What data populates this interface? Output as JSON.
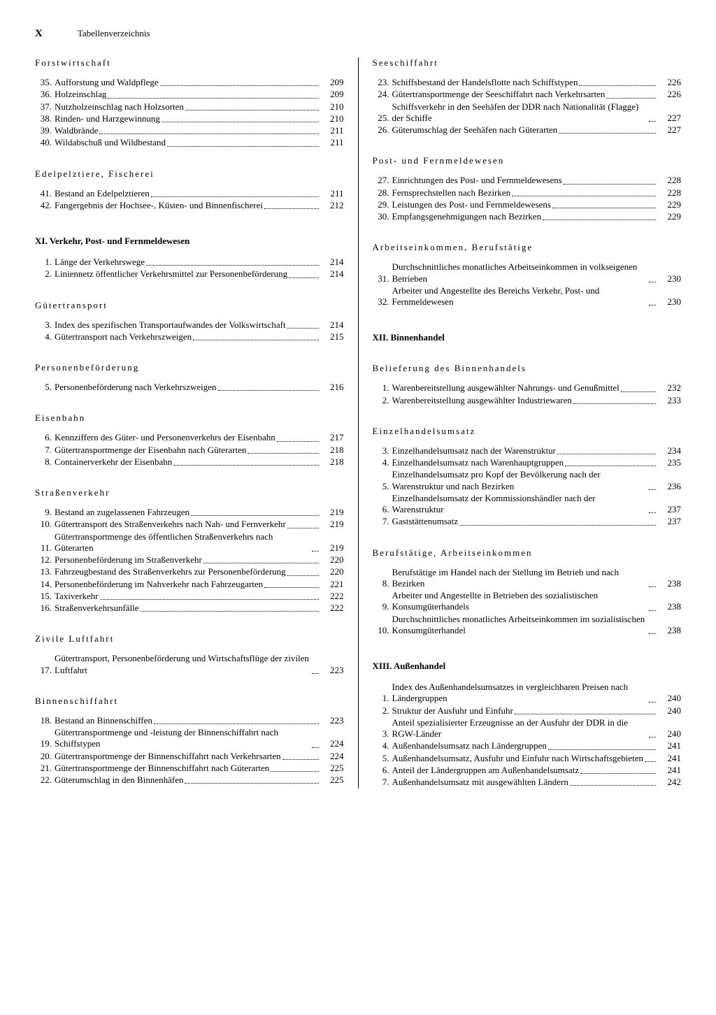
{
  "header": {
    "page_number": "X",
    "title": "Tabellenverzeichnis"
  },
  "left_column": [
    {
      "type": "section",
      "title": "Forstwirtschaft",
      "first": true,
      "entries": [
        {
          "num": "35.",
          "text": "Aufforstung und Waldpflege",
          "page": "209"
        },
        {
          "num": "36.",
          "text": "Holzeinschlag",
          "page": "209"
        },
        {
          "num": "37.",
          "text": "Nutzholzeinschlag nach Holzsorten",
          "page": "210"
        },
        {
          "num": "38.",
          "text": "Rinden- und Harzgewinnung",
          "page": "210"
        },
        {
          "num": "39.",
          "text": "Waldbrände",
          "page": "211"
        },
        {
          "num": "40.",
          "text": "Wildabschuß und Wildbestand",
          "page": "211"
        }
      ]
    },
    {
      "type": "section",
      "title": "Edelpelztiere, Fischerei",
      "entries": [
        {
          "num": "41.",
          "text": "Bestand an Edelpelztieren",
          "page": "211"
        },
        {
          "num": "42.",
          "text": "Fangergebnis der Hochsee-, Küsten- und Binnenfischerei",
          "page": "212"
        }
      ]
    },
    {
      "type": "chapter",
      "title": "XI. Verkehr, Post- und Fernmeldewesen",
      "entries": [
        {
          "num": "1.",
          "text": "Länge der Verkehrswege",
          "page": "214"
        },
        {
          "num": "2.",
          "text": "Liniennetz öffentlicher Verkehrsmittel zur Personenbeförderung",
          "page": "214"
        }
      ]
    },
    {
      "type": "section",
      "title": "Gütertransport",
      "entries": [
        {
          "num": "3.",
          "text": "Index des spezifischen Transportaufwandes der Volkswirtschaft",
          "page": "214"
        },
        {
          "num": "4.",
          "text": "Gütertransport nach Verkehrszweigen",
          "page": "215"
        }
      ]
    },
    {
      "type": "section",
      "title": "Personenbeförderung",
      "entries": [
        {
          "num": "5.",
          "text": "Personenbeförderung nach Verkehrszweigen",
          "page": "216"
        }
      ]
    },
    {
      "type": "section",
      "title": "Eisenbahn",
      "entries": [
        {
          "num": "6.",
          "text": "Kennziffern des Güter- und Personenverkehrs der Eisenbahn",
          "page": "217"
        },
        {
          "num": "7.",
          "text": "Gütertransportmenge der Eisenbahn nach Güterarten",
          "page": "218"
        },
        {
          "num": "8.",
          "text": "Containerverkehr der Eisenbahn",
          "page": "218"
        }
      ]
    },
    {
      "type": "section",
      "title": "Straßenverkehr",
      "entries": [
        {
          "num": "9.",
          "text": "Bestand an zugelassenen Fahrzeugen",
          "page": "219"
        },
        {
          "num": "10.",
          "text": "Gütertransport des Straßenverkehrs nach Nah- und Fernverkehr",
          "page": "219"
        },
        {
          "num": "11.",
          "text": "Gütertransportmenge des öffentlichen Straßenverkehrs nach Güterarten",
          "page": "219"
        },
        {
          "num": "12.",
          "text": "Personenbeförderung im Straßenverkehr",
          "page": "220"
        },
        {
          "num": "13.",
          "text": "Fahrzeugbestand des Straßenverkehrs zur Personenbeförderung",
          "page": "220"
        },
        {
          "num": "14.",
          "text": "Personenbeförderung im Nahverkehr nach Fahrzeugarten",
          "page": "221"
        },
        {
          "num": "15.",
          "text": "Taxiverkehr",
          "page": "222"
        },
        {
          "num": "16.",
          "text": "Straßenverkehrsunfälle",
          "page": "222"
        }
      ]
    },
    {
      "type": "section",
      "title": "Zivile Luftfahrt",
      "entries": [
        {
          "num": "17.",
          "text": "Gütertransport, Personenbeförderung und Wirtschaftsflüge der zivilen Luftfahrt",
          "page": "223"
        }
      ]
    },
    {
      "type": "section",
      "title": "Binnenschiffahrt",
      "entries": [
        {
          "num": "18.",
          "text": "Bestand an Binnenschiffen",
          "page": "223"
        },
        {
          "num": "19.",
          "text": "Gütertransportmenge und -leistung der Binnenschiffahrt nach Schiffstypen",
          "page": "224"
        },
        {
          "num": "20.",
          "text": "Gütertransportmenge der Binnenschiffahrt nach Verkehrsarten",
          "page": "224"
        },
        {
          "num": "21.",
          "text": "Gütertransportmenge der Binnenschiffahrt nach Güterarten",
          "page": "225"
        },
        {
          "num": "22.",
          "text": "Güterumschlag in den Binnenhäfen",
          "page": "225"
        }
      ]
    }
  ],
  "right_column": [
    {
      "type": "section",
      "title": "Seeschiffahrt",
      "first": true,
      "entries": [
        {
          "num": "23.",
          "text": "Schiffsbestand der Handelsflotte nach Schiffstypen",
          "page": "226"
        },
        {
          "num": "24.",
          "text": "Gütertransportmenge der Seeschiffahrt nach Verkehrsarten",
          "page": "226"
        },
        {
          "num": "25.",
          "text": "Schiffsverkehr in den Seehäfen der DDR nach Nationalität (Flagge) der Schiffe",
          "page": "227"
        },
        {
          "num": "26.",
          "text": "Güterumschlag der Seehäfen nach Güterarten",
          "page": "227"
        }
      ]
    },
    {
      "type": "section",
      "title": "Post- und Fernmeldewesen",
      "entries": [
        {
          "num": "27.",
          "text": "Einrichtungen des Post- und Fernmeldewesens",
          "page": "228"
        },
        {
          "num": "28.",
          "text": "Fernsprechstellen nach Bezirken",
          "page": "228"
        },
        {
          "num": "29.",
          "text": "Leistungen des Post- und Fernmeldewesens",
          "page": "229"
        },
        {
          "num": "30.",
          "text": "Empfangsgenehmigungen nach Bezirken",
          "page": "229"
        }
      ]
    },
    {
      "type": "section",
      "title": "Arbeitseinkommen, Berufstätige",
      "entries": [
        {
          "num": "31.",
          "text": "Durchschnittliches monatliches Arbeitseinkommen in volkseigenen Betrieben",
          "page": "230"
        },
        {
          "num": "32.",
          "text": "Arbeiter und Angestellte des Bereichs Verkehr, Post- und Fernmeldewesen",
          "page": "230"
        }
      ]
    },
    {
      "type": "chapter",
      "title": "XII. Binnenhandel",
      "entries": []
    },
    {
      "type": "section",
      "title": "Belieferung des Binnenhandels",
      "entries": [
        {
          "num": "1.",
          "text": "Warenbereitstellung ausgewählter Nahrungs- und Genußmittel",
          "page": "232"
        },
        {
          "num": "2.",
          "text": "Warenbereitstellung ausgewählter Industriewaren",
          "page": "233"
        }
      ]
    },
    {
      "type": "section",
      "title": "Einzelhandelsumsatz",
      "entries": [
        {
          "num": "3.",
          "text": "Einzelhandelsumsatz nach der Warenstruktur",
          "page": "234"
        },
        {
          "num": "4.",
          "text": "Einzelhandelsumsatz nach Warenhauptgruppen",
          "page": "235"
        },
        {
          "num": "5.",
          "text": "Einzelhandelsumsatz pro Kopf der Bevölkerung nach der Warenstruktur und nach Bezirken",
          "page": "236"
        },
        {
          "num": "6.",
          "text": "Einzelhandelsumsatz der Kommissionshändler nach der Warenstruktur",
          "page": "237"
        },
        {
          "num": "7.",
          "text": "Gaststättenumsatz",
          "page": "237"
        }
      ]
    },
    {
      "type": "section",
      "title": "Berufstätige, Arbeitseinkommen",
      "entries": [
        {
          "num": "8.",
          "text": "Berufstätige im Handel nach der Stellung im Betrieb und nach Bezirken",
          "page": "238"
        },
        {
          "num": "9.",
          "text": "Arbeiter und Angestellte in Betrieben des sozialistischen Konsumgüterhandels",
          "page": "238"
        },
        {
          "num": "10.",
          "text": "Durchschnittliches monatliches Arbeitseinkommen im sozialistischen Konsumgüterhandel",
          "page": "238"
        }
      ]
    },
    {
      "type": "chapter",
      "title": "XIII. Außenhandel",
      "entries": [
        {
          "num": "1.",
          "text": "Index des Außenhandelsumsatzes in vergleichbaren Preisen nach Ländergruppen",
          "page": "240"
        },
        {
          "num": "2.",
          "text": "Struktur der Ausfuhr und Einfuhr",
          "page": "240"
        },
        {
          "num": "3.",
          "text": "Anteil spezialisierter Erzeugnisse an der Ausfuhr der DDR in die RGW-Länder",
          "page": "240"
        },
        {
          "num": "4.",
          "text": "Außenhandelsumsatz nach Ländergruppen",
          "page": "241"
        },
        {
          "num": "5.",
          "text": "Außenhandelsumsatz, Ausfuhr und Einfuhr nach Wirtschaftsgebieten",
          "page": "241"
        },
        {
          "num": "6.",
          "text": "Anteil der Ländergruppen am Außenhandelsumsatz",
          "page": "241"
        },
        {
          "num": "7.",
          "text": "Außenhandelsumsatz mit ausgewählten Ländern",
          "page": "242"
        }
      ]
    }
  ]
}
